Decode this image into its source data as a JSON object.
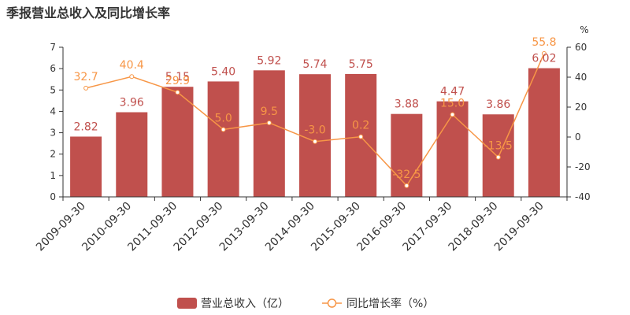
{
  "title": "季报营业总收入及同比增长率",
  "chart_data": {
    "type": "bar",
    "categories": [
      "2009-09-30",
      "2010-09-30",
      "2011-09-30",
      "2012-09-30",
      "2013-09-30",
      "2014-09-30",
      "2015-09-30",
      "2016-09-30",
      "2017-09-30",
      "2018-09-30",
      "2019-09-30"
    ],
    "series": [
      {
        "name": "营业总收入（亿）",
        "type": "bar",
        "axis": "left",
        "color": "#c0504d",
        "values": [
          2.82,
          3.96,
          5.15,
          5.4,
          5.92,
          5.74,
          5.75,
          3.88,
          4.47,
          3.86,
          6.02
        ],
        "labels": [
          "2.82",
          "3.96",
          "5.15",
          "5.40",
          "5.92",
          "5.74",
          "5.75",
          "3.88",
          "4.47",
          "3.86",
          "6.02"
        ]
      },
      {
        "name": "同比增长率（%）",
        "type": "line",
        "axis": "right",
        "color": "#f79646",
        "values": [
          32.7,
          40.4,
          29.9,
          5.0,
          9.5,
          -3.0,
          0.2,
          -32.5,
          15.0,
          -13.5,
          55.8
        ],
        "labels": [
          "32.7",
          "40.4",
          "29.9",
          "5.0",
          "9.5",
          "-3.0",
          "0.2",
          "-32.5",
          "15.0",
          "-13.5",
          "55.8"
        ]
      }
    ],
    "left_axis": {
      "min": 0,
      "max": 7,
      "ticks": [
        "0",
        "1",
        "2",
        "3",
        "4",
        "5",
        "6",
        "7"
      ]
    },
    "right_axis": {
      "min": -40,
      "max": 60,
      "unit": "%",
      "ticks": [
        "-40",
        "-20",
        "0",
        "20",
        "40",
        "60"
      ]
    },
    "grid": false,
    "legend_position": "bottom-center"
  }
}
